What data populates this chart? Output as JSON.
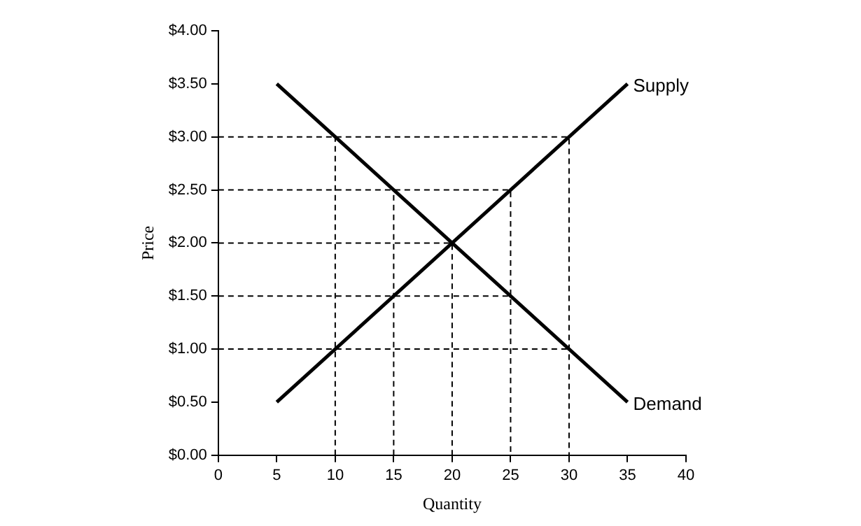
{
  "chart_data": {
    "type": "line",
    "xlabel": "Quantity",
    "ylabel": "Price",
    "xlim": [
      0,
      40
    ],
    "xticks": [
      0,
      5,
      10,
      15,
      20,
      25,
      30,
      35,
      40
    ],
    "ylim": [
      0,
      4
    ],
    "yticks": [
      {
        "value": 0,
        "label": "$0.00"
      },
      {
        "value": 0.5,
        "label": "$0.50"
      },
      {
        "value": 1,
        "label": "$1.00"
      },
      {
        "value": 1.5,
        "label": "$1.50"
      },
      {
        "value": 2,
        "label": "$2.00"
      },
      {
        "value": 2.5,
        "label": "$2.50"
      },
      {
        "value": 3,
        "label": "$3.00"
      },
      {
        "value": 3.5,
        "label": "$3.50"
      },
      {
        "value": 4,
        "label": "$4.00"
      }
    ],
    "grid": false,
    "legend": false,
    "marker": "none",
    "series": [
      {
        "name": "Supply",
        "color": "#000000",
        "x": [
          5,
          35
        ],
        "values": [
          0.5,
          3.5
        ]
      },
      {
        "name": "Demand",
        "color": "#000000",
        "x": [
          5,
          35
        ],
        "values": [
          3.5,
          0.5
        ]
      },
      {
        "color": "#000000",
        "line_style": "dashed",
        "x": [
          0,
          30,
          30
        ],
        "values": [
          3,
          3,
          0
        ]
      },
      {
        "color": "#000000",
        "line_style": "dashed",
        "x": [
          10,
          10
        ],
        "values": [
          0,
          3
        ]
      },
      {
        "color": "#000000",
        "line_style": "dashed",
        "x": [
          0,
          25,
          25
        ],
        "values": [
          2.5,
          2.5,
          0
        ]
      },
      {
        "color": "#000000",
        "line_style": "dashed",
        "x": [
          15,
          15
        ],
        "values": [
          0,
          2.5
        ]
      },
      {
        "color": "#000000",
        "line_style": "dashed",
        "x": [
          0,
          20,
          20
        ],
        "values": [
          2,
          2,
          0
        ]
      },
      {
        "color": "#000000",
        "line_style": "dashed",
        "x": [
          0,
          25
        ],
        "values": [
          1.5,
          1.5
        ]
      },
      {
        "color": "#000000",
        "line_style": "dashed",
        "x": [
          0,
          30
        ],
        "values": [
          1,
          1
        ]
      }
    ]
  }
}
